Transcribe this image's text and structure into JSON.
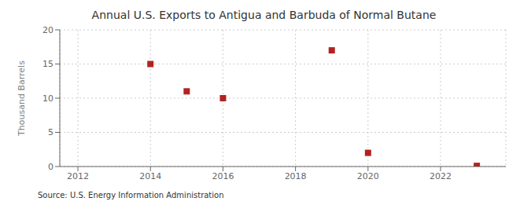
{
  "chart_data": {
    "type": "scatter",
    "title": "Annual U.S. Exports to Antigua and Barbuda of Normal Butane",
    "y_label": "Thousand Barrels",
    "annotation": "Source: U.S. Energy Information Administration",
    "x": [
      2014,
      2015,
      2016,
      2019,
      2020,
      2023
    ],
    "values": [
      15,
      11,
      10,
      17,
      2,
      0.1
    ],
    "color": "#b22222",
    "marker": "square",
    "xlim": [
      2011.5,
      2023.8
    ],
    "ylim": [
      0,
      20
    ],
    "xticks": [
      2012,
      2014,
      2016,
      2018,
      2020,
      2022
    ],
    "yticks": [
      0,
      5,
      10,
      15,
      20
    ],
    "grid": true
  }
}
